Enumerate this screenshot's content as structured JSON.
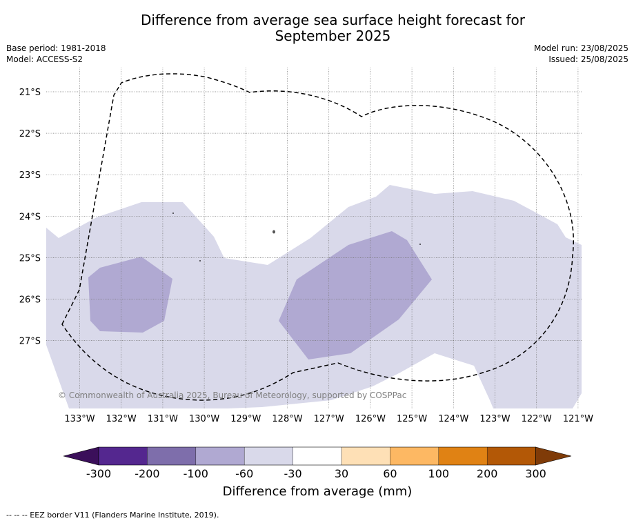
{
  "title_line1": "Difference from average sea surface height forecast for",
  "title_line2": "September 2025",
  "base_period": "Base period: 1981-2018",
  "model": "Model: ACCESS-S2",
  "model_run": "Model run: 23/08/2025",
  "issued": "Issued: 25/08/2025",
  "copyright": "© Commonwealth of Australia 2025, Bureau of Meteorology, supported by COSPPac",
  "lat_labels": [
    "21°S",
    "22°S",
    "23°S",
    "24°S",
    "25°S",
    "26°S",
    "27°S"
  ],
  "lon_labels": [
    "133°W",
    "132°W",
    "131°W",
    "130°W",
    "129°W",
    "128°W",
    "127°W",
    "126°W",
    "125°W",
    "124°W",
    "123°W",
    "122°W",
    "121°W"
  ],
  "colorbar": {
    "labels": [
      "-300",
      "-200",
      "-100",
      "-60",
      "-30",
      "30",
      "60",
      "100",
      "200",
      "300"
    ],
    "colors": [
      "#3b0f5a",
      "#54278f",
      "#7e6eab",
      "#b0a9d2",
      "#d9d9ea",
      "#ffffff",
      "#fee0b6",
      "#fdb863",
      "#e08214",
      "#b35806",
      "#7f3b08"
    ],
    "title": "Difference from average (mm)"
  },
  "footer": "--  --  -- EEZ border V11 (Flanders Marine Institute, 2019)."
}
